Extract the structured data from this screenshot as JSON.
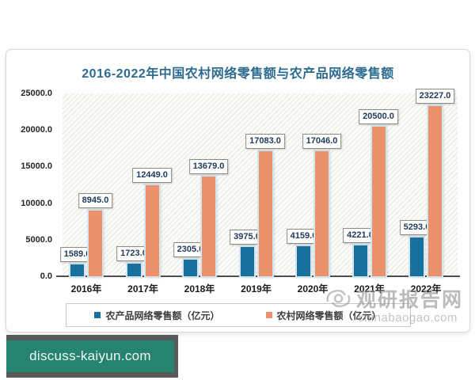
{
  "page": {
    "site_badge": "discuss-kaiyun.com"
  },
  "watermark": {
    "brand": "观研报告网",
    "domain": "chinabaogao.com"
  },
  "chart_data": {
    "type": "bar",
    "title": "2016-2022年中国农村网络零售额与农产品网络零售额",
    "categories": [
      "2016年",
      "2017年",
      "2018年",
      "2019年",
      "2020年",
      "2021年",
      "2022年"
    ],
    "series": [
      {
        "name": "农产品网络零售额（亿元）",
        "color": "#17719c",
        "values": [
          1589.0,
          1723.0,
          2305.0,
          3975.0,
          4159.0,
          4221.0,
          5293.0
        ]
      },
      {
        "name": "农村网络零售额（亿元）",
        "color": "#e9926c",
        "values": [
          8945.0,
          12449.0,
          13679.0,
          17083.0,
          17046.0,
          20500.0,
          23227.0
        ]
      }
    ],
    "xlabel": "",
    "ylabel": "",
    "ylim": [
      0,
      25000
    ],
    "ytick_step": 5000,
    "ytick_labels": [
      "0.0",
      "5000.0",
      "10000.0",
      "15000.0",
      "20000.0",
      "25000.0"
    ],
    "grid": false,
    "value_labels": true,
    "legend_position": "bottom"
  }
}
